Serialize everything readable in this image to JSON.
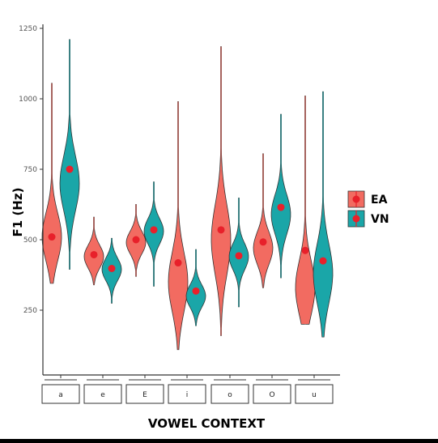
{
  "chart_data": {
    "type": "violin",
    "ylabel": "F1 (Hz)",
    "xlabel": "VOWEL CONTEXT",
    "ylim": [
      0,
      1250
    ],
    "yticks": [
      250,
      500,
      750,
      1000,
      1250
    ],
    "categories": [
      "a",
      "e",
      "E",
      "i",
      "o",
      "O",
      "u"
    ],
    "legend_position": "right",
    "series": [
      {
        "name": "EA",
        "color": "#f26b61",
        "means": [
          510,
          447,
          500,
          418,
          535,
          492,
          462
        ],
        "min": [
          345,
          340,
          370,
          110,
          160,
          330,
          200
        ],
        "max": [
          1055,
          580,
          625,
          990,
          1185,
          805,
          1010
        ],
        "mode": [
          510,
          440,
          490,
          350,
          500,
          470,
          330
        ]
      },
      {
        "name": "VN",
        "color": "#1aa6a8",
        "means": [
          750,
          398,
          535,
          318,
          443,
          615,
          425
        ],
        "min": [
          395,
          275,
          335,
          195,
          262,
          365,
          155
        ],
        "max": [
          1210,
          505,
          705,
          465,
          648,
          945,
          1025
        ],
        "mode": [
          700,
          395,
          530,
          300,
          440,
          590,
          380
        ]
      }
    ],
    "grid": false
  }
}
